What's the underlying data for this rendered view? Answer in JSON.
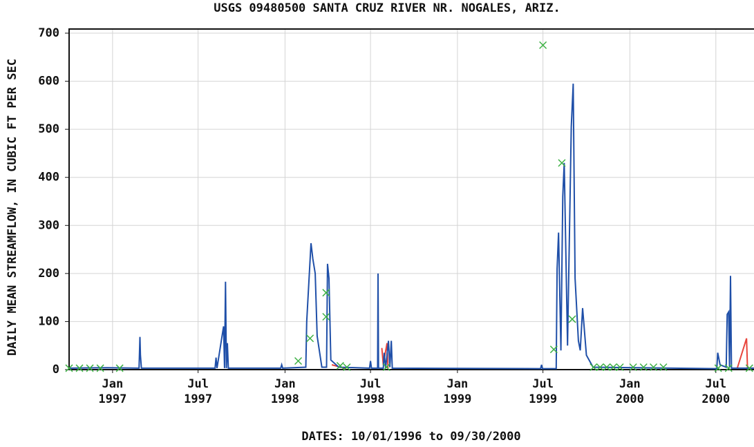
{
  "chart_data": {
    "type": "line",
    "title": "USGS 09480500 SANTA CRUZ RIVER NR. NOGALES, ARIZ.",
    "xlabel": "DATES: 10/01/1996 to 09/30/2000",
    "ylabel": "DAILY MEAN STREAMFLOW, IN CUBIC FT PER SEC",
    "xlim": [
      "1996-10-01",
      "2000-09-30"
    ],
    "xticks": [
      {
        "value": "1997-01-01",
        "label": "Jan 1997"
      },
      {
        "value": "1997-07-01",
        "label": "Jul 1997"
      },
      {
        "value": "1998-01-01",
        "label": "Jan 1998"
      },
      {
        "value": "1998-07-01",
        "label": "Jul 1998"
      },
      {
        "value": "1999-01-01",
        "label": "Jan 1999"
      },
      {
        "value": "1999-07-01",
        "label": "Jul 1999"
      },
      {
        "value": "2000-01-01",
        "label": "Jan 2000"
      },
      {
        "value": "2000-07-01",
        "label": "Jul 2000"
      }
    ],
    "ylim": [
      0,
      700
    ],
    "yticks": [
      0,
      100,
      200,
      300,
      400,
      500,
      600,
      700
    ],
    "grid": true,
    "series": [
      {
        "color": "#1f4fa8",
        "x": [
          "1996-10-01",
          "1996-12-20",
          "1997-02-26",
          "1997-02-28",
          "1997-03-01",
          "1997-03-03",
          "1997-08-06",
          "1997-08-08",
          "1997-08-10",
          "1997-08-24",
          "1997-08-26",
          "1997-08-28",
          "1997-08-30",
          "1997-09-01",
          "1997-09-03",
          "1997-12-23",
          "1997-12-25",
          "1997-12-27",
          "1998-02-14",
          "1998-02-16",
          "1998-02-25",
          "1998-03-01",
          "1998-03-06",
          "1998-03-10",
          "1998-03-20",
          "1998-03-30",
          "1998-04-01",
          "1998-04-04",
          "1998-04-08",
          "1998-04-25",
          "1998-06-29",
          "1998-07-01",
          "1998-07-03",
          "1998-07-16",
          "1998-07-17",
          "1998-07-18",
          "1998-07-28",
          "1998-07-30",
          "1998-08-02",
          "1998-08-08",
          "1998-08-11",
          "1998-08-14",
          "1998-08-16",
          "1999-06-26",
          "1999-06-28",
          "1999-06-30",
          "1999-07-29",
          "1999-07-31",
          "1999-08-03",
          "1999-08-08",
          "1999-08-12",
          "1999-08-15",
          "1999-08-22",
          "1999-08-30",
          "1999-09-03",
          "1999-09-07",
          "1999-09-14",
          "1999-09-18",
          "1999-09-23",
          "1999-10-01",
          "1999-10-15",
          "2000-07-03",
          "2000-07-05",
          "2000-07-10",
          "2000-07-23",
          "2000-07-25",
          "2000-07-28",
          "2000-07-30",
          "2000-08-01",
          "2000-08-03",
          "2000-09-30"
        ],
        "values": [
          3,
          4,
          3,
          68,
          30,
          3,
          3,
          25,
          3,
          90,
          3,
          183,
          3,
          55,
          3,
          3,
          10,
          3,
          5,
          100,
          263,
          230,
          200,
          70,
          5,
          5,
          220,
          190,
          20,
          5,
          3,
          18,
          3,
          3,
          200,
          3,
          3,
          35,
          3,
          60,
          5,
          60,
          3,
          2,
          10,
          2,
          2,
          210,
          285,
          40,
          360,
          430,
          50,
          505,
          595,
          190,
          60,
          40,
          128,
          30,
          5,
          2,
          35,
          10,
          5,
          115,
          120,
          5,
          195,
          3,
          3
        ]
      },
      {
        "color": "#e8453c",
        "x": [
          "1998-04-10",
          "1998-05-10",
          null,
          "1998-07-25",
          "1998-07-28",
          "1998-08-05",
          "1998-08-07",
          null,
          "2000-08-15",
          "2000-09-04",
          "2000-09-06"
        ],
        "values": [
          10,
          2,
          null,
          45,
          10,
          55,
          3,
          null,
          2,
          65,
          3
        ]
      }
    ],
    "markers": {
      "color": "#3cb043",
      "x": [
        "1996-10-01",
        "1996-10-23",
        "1996-11-14",
        "1996-12-06",
        "1997-01-16",
        "1998-01-29",
        "1998-02-23",
        "1998-03-29",
        "1998-03-29",
        "1998-04-28",
        "1998-05-12",
        "1998-08-04",
        "1999-07-01",
        "1999-07-24",
        "1999-08-10",
        "1999-09-01",
        "1999-10-16",
        "1999-10-30",
        "1999-11-13",
        "1999-11-27",
        "1999-12-11",
        "2000-01-08",
        "2000-01-30",
        "2000-02-20",
        "2000-03-12",
        "2000-07-06",
        "2000-07-28",
        "2000-09-10"
      ],
      "values": [
        3,
        3,
        3,
        3,
        3,
        18,
        65,
        160,
        110,
        8,
        5,
        5,
        675,
        42,
        430,
        105,
        5,
        5,
        5,
        5,
        5,
        5,
        5,
        5,
        5,
        3,
        3,
        3
      ]
    }
  }
}
